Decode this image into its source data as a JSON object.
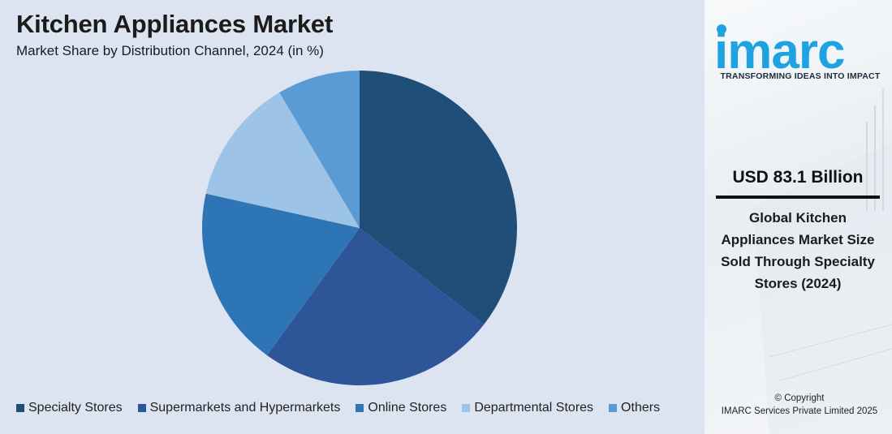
{
  "chart_data": {
    "type": "pie",
    "title": "Kitchen Appliances Market",
    "subtitle": "Market Share by Distribution Channel, 2024 (in %)",
    "categories": [
      "Specialty Stores",
      "Supermarkets and Hypermarkets",
      "Online Stores",
      "Departmental Stores",
      "Others"
    ],
    "values": [
      35.5,
      24.5,
      18.5,
      13,
      8.5
    ],
    "colors": [
      "#1f4e79",
      "#2e5597",
      "#2e75b6",
      "#9dc3e6",
      "#5b9bd5"
    ],
    "start_angle_deg": 0,
    "direction": "clockwise",
    "legend": "bottom"
  },
  "sidebar": {
    "logo_text": "imarc",
    "tagline": "TRANSFORMING IDEAS INTO IMPACT",
    "stat_value": "USD 83.1 Billion",
    "stat_description": "Global Kitchen Appliances Market Size Sold Through Specialty Stores (2024)",
    "copyright_line1": "© Copyright",
    "copyright_line2": "IMARC Services Private Limited 2025"
  },
  "colors": {
    "chart_background": "#dce4f2",
    "brand": "#1fa3e0"
  }
}
